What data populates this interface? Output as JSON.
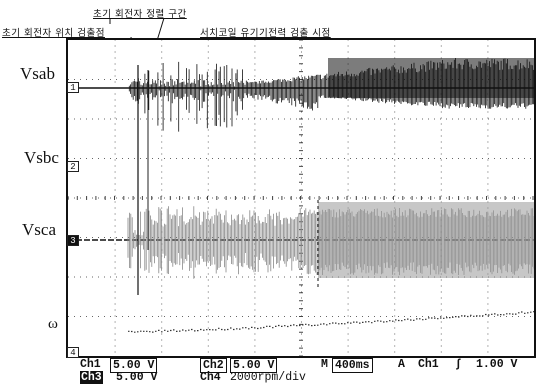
{
  "annotations": {
    "initial_rotor_align": "초기 회전자 정렬 구간",
    "initial_rotor_detect": "초기 회전자 위치 검출점",
    "search_coil_detect": "서치코일 유기기전력 검출 시점"
  },
  "channels": [
    {
      "label": "Vsab",
      "marker": "1"
    },
    {
      "label": "Vsbc",
      "marker": "2"
    },
    {
      "label": "Vsca",
      "marker": "3"
    },
    {
      "label": "ω",
      "marker": "4"
    }
  ],
  "status": {
    "ch1_label": "Ch1",
    "ch1_scale": "5.00 V",
    "ch2_label": "Ch2",
    "ch2_scale": "5.00 V",
    "timebase_label": "M",
    "timebase": "400ms",
    "trigger_mode": "A",
    "trigger_source": "Ch1",
    "trigger_slope": "∫",
    "trigger_level": "1.00 V",
    "ch3_label": "Ch3",
    "ch3_scale": "5.00 V",
    "ch4_label": "Ch4",
    "ch4_scale": "2000rpm/div"
  }
}
